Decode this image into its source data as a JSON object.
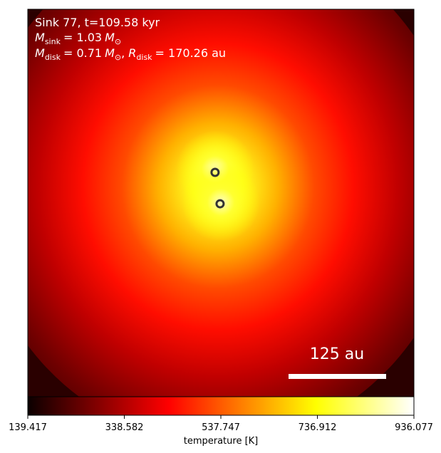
{
  "chart_data": {
    "type": "heatmap",
    "title_line1": "Sink 77, t=109.58 kyr",
    "sink_mass_label": "M",
    "sink_mass_sub": "sink",
    "sink_mass_value": "= 1.03",
    "sink_mass_unit": "M",
    "sink_mass_unit_sub": "⊙",
    "disk_mass_label": "M",
    "disk_mass_sub": "disk",
    "disk_mass_value": "= 0.71",
    "disk_mass_unit": "M",
    "disk_mass_unit_sub": "⊙",
    "disk_radius_label": "R",
    "disk_radius_sub": "disk",
    "disk_radius_value": "= 170.26 au",
    "scale_bar_label": "125 au",
    "colorbar": {
      "label": "temperature [K]",
      "cmap": "hot",
      "vmin": 139.417,
      "vmax": 936.077,
      "ticks": [
        "139.417",
        "338.582",
        "537.747",
        "736.912",
        "936.077"
      ]
    },
    "sinks": [
      {
        "x": 0.485,
        "y": 0.421
      },
      {
        "x": 0.498,
        "y": 0.502
      }
    ],
    "colors": {
      "hot_low": "#000000",
      "hot_mid": "#ff0000",
      "hot_high": "#ffff00",
      "hot_top": "#ffffff"
    }
  }
}
